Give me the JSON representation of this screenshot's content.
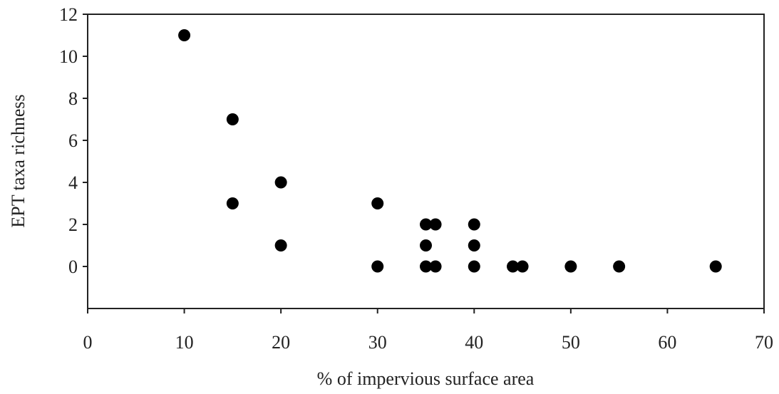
{
  "chart_data": {
    "type": "scatter",
    "xlabel": "% of impervious surface area",
    "ylabel": "EPT taxa richness",
    "xlim": [
      0,
      70
    ],
    "ylim": [
      -2,
      12
    ],
    "x_ticks": [
      0,
      10,
      20,
      30,
      40,
      50,
      60,
      70
    ],
    "y_ticks": [
      0,
      2,
      4,
      6,
      8,
      10,
      12
    ],
    "grid": false,
    "legend": "none",
    "marker_color": "#000000",
    "series": [
      {
        "points": [
          {
            "x": 10,
            "y": 11
          },
          {
            "x": 15,
            "y": 7
          },
          {
            "x": 15,
            "y": 3
          },
          {
            "x": 20,
            "y": 4
          },
          {
            "x": 20,
            "y": 1
          },
          {
            "x": 30,
            "y": 3
          },
          {
            "x": 30,
            "y": 0
          },
          {
            "x": 35,
            "y": 2
          },
          {
            "x": 36,
            "y": 2
          },
          {
            "x": 35,
            "y": 1
          },
          {
            "x": 35,
            "y": 0
          },
          {
            "x": 36,
            "y": 0
          },
          {
            "x": 40,
            "y": 2
          },
          {
            "x": 40,
            "y": 1
          },
          {
            "x": 40,
            "y": 0
          },
          {
            "x": 44,
            "y": 0
          },
          {
            "x": 45,
            "y": 0
          },
          {
            "x": 50,
            "y": 0
          },
          {
            "x": 55,
            "y": 0
          },
          {
            "x": 65,
            "y": 0
          }
        ]
      }
    ]
  }
}
